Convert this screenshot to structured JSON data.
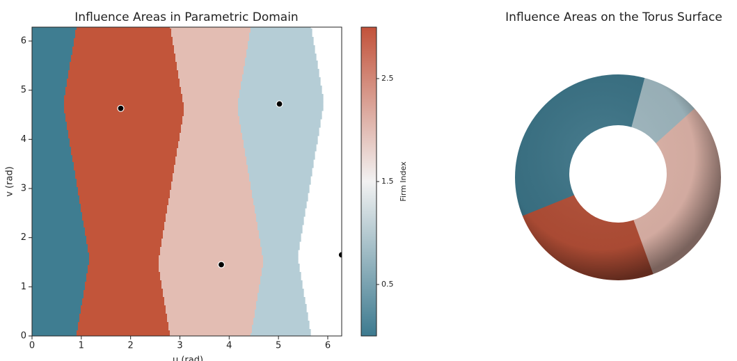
{
  "chart_data": [
    {
      "type": "region",
      "title": "Influence Areas in Parametric Domain",
      "xlabel": "u (rad)",
      "ylabel": "v (rad)",
      "x": [
        1.8,
        5.02,
        3.84,
        6.28
      ],
      "y": [
        4.63,
        4.72,
        1.45,
        1.65
      ],
      "colors": [
        "#c2553a",
        "#b5cdd6",
        "#e3bdb3",
        "#3f7d91"
      ],
      "xlim": [
        0,
        6.283
      ],
      "ylim": [
        0,
        6.283
      ],
      "xticks": [
        0,
        1,
        2,
        3,
        4,
        5,
        6
      ],
      "yticks": [
        0,
        1,
        2,
        3,
        4,
        5,
        6
      ],
      "colorbar": {
        "label": "Firm Index",
        "lim": [
          0,
          3
        ],
        "ticks": [
          0.5,
          1.5,
          2.5
        ],
        "colormap": [
          "#3d7a8f",
          "#f2f2f2",
          "#c2523a"
        ]
      }
    },
    {
      "type": "torus",
      "title": "Influence Areas on the Torus Surface"
    }
  ]
}
